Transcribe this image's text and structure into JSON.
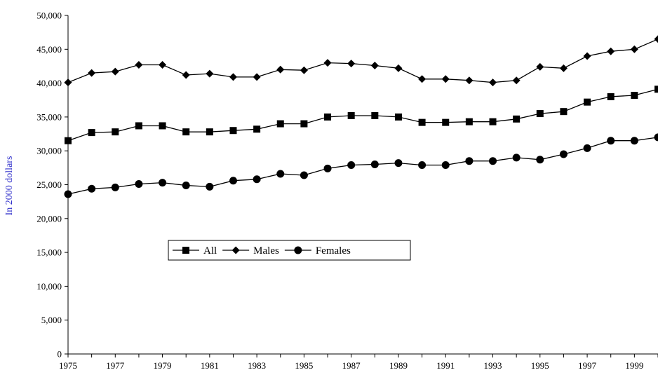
{
  "chart_data": {
    "type": "line",
    "title": "",
    "xlabel": "",
    "ylabel": "In 2000 dollars",
    "ylabel_color": "#3333cc",
    "x": [
      1975,
      1976,
      1977,
      1978,
      1979,
      1980,
      1981,
      1982,
      1983,
      1984,
      1985,
      1986,
      1987,
      1988,
      1989,
      1990,
      1991,
      1992,
      1993,
      1994,
      1995,
      1996,
      1997,
      1998,
      1999,
      2000
    ],
    "x_tick_labels": [
      "1975",
      "1977",
      "1979",
      "1981",
      "1983",
      "1985",
      "1987",
      "1989",
      "1991",
      "1993",
      "1995",
      "1997",
      "1999"
    ],
    "y_tick_labels": [
      "0",
      "5,000",
      "10,000",
      "15,000",
      "20,000",
      "25,000",
      "30,000",
      "35,000",
      "40,000",
      "45,000",
      "50,000"
    ],
    "ylim": [
      0,
      50000
    ],
    "grid": false,
    "legend_position": "center-left",
    "series": [
      {
        "name": "All",
        "marker": "square",
        "values": [
          31500,
          32700,
          32800,
          33700,
          33700,
          32800,
          32800,
          33000,
          33200,
          34000,
          34000,
          35000,
          35200,
          35200,
          35000,
          34200,
          34200,
          34300,
          34300,
          34700,
          35500,
          35800,
          37200,
          38000,
          38200,
          39100
        ]
      },
      {
        "name": "Males",
        "marker": "diamond",
        "values": [
          40100,
          41500,
          41700,
          42700,
          42700,
          41200,
          41400,
          40900,
          40900,
          42000,
          41900,
          43000,
          42900,
          42600,
          42200,
          40600,
          40600,
          40400,
          40100,
          40400,
          42400,
          42200,
          44000,
          44700,
          45000,
          46500
        ]
      },
      {
        "name": "Females",
        "marker": "circle",
        "values": [
          23600,
          24400,
          24600,
          25100,
          25300,
          24900,
          24700,
          25600,
          25800,
          26600,
          26400,
          27400,
          27900,
          28000,
          28200,
          27900,
          27900,
          28500,
          28500,
          29000,
          28700,
          29500,
          30400,
          31500,
          31500,
          32000
        ]
      }
    ]
  }
}
